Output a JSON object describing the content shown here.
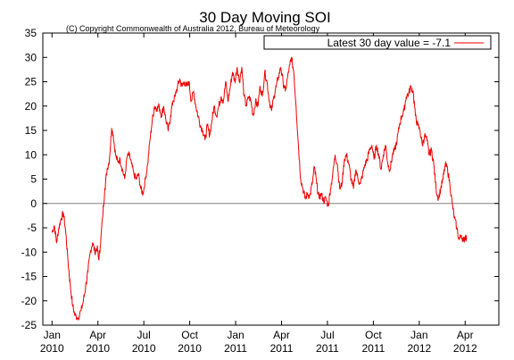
{
  "chart_data": {
    "type": "line",
    "title": "30 Day Moving SOI",
    "subtitle": "(C) Copyright Commonwealth of Australia 2012, Bureau of Meteorology",
    "xlabel": "",
    "ylabel": "",
    "ylim": [
      -25,
      35
    ],
    "yticks": [
      -25,
      -20,
      -15,
      -10,
      -5,
      0,
      5,
      10,
      15,
      20,
      25,
      30,
      35
    ],
    "grid": false,
    "zero_line": true,
    "legend": {
      "placement": "top-right",
      "text": "Latest 30 day value = -7.1"
    },
    "series_color": "#ee0000",
    "x_ticks": [
      {
        "month": "Jan",
        "year": "2010",
        "t": 0
      },
      {
        "month": "Apr",
        "year": "2010",
        "t": 3
      },
      {
        "month": "Jul",
        "year": "2010",
        "t": 6
      },
      {
        "month": "Oct",
        "year": "2010",
        "t": 9
      },
      {
        "month": "Jan",
        "year": "2011",
        "t": 12
      },
      {
        "month": "Apr",
        "year": "2011",
        "t": 15
      },
      {
        "month": "Jul",
        "year": "2011",
        "t": 18
      },
      {
        "month": "Oct",
        "year": "2011",
        "t": 21
      },
      {
        "month": "Jan",
        "year": "2012",
        "t": 24
      },
      {
        "month": "Apr",
        "year": "2012",
        "t": 27
      }
    ],
    "xlim": [
      -0.6,
      29.2
    ],
    "series": [
      {
        "points": [
          [
            0.0,
            -6.0
          ],
          [
            0.15,
            -4.5
          ],
          [
            0.3,
            -8.0
          ],
          [
            0.45,
            -5.0
          ],
          [
            0.6,
            -3.0
          ],
          [
            0.75,
            -2.0
          ],
          [
            0.9,
            -6.0
          ],
          [
            1.05,
            -12.0
          ],
          [
            1.2,
            -17.0
          ],
          [
            1.35,
            -21.0
          ],
          [
            1.5,
            -23.0
          ],
          [
            1.7,
            -23.5
          ],
          [
            1.9,
            -22.0
          ],
          [
            2.05,
            -20.0
          ],
          [
            2.2,
            -17.0
          ],
          [
            2.35,
            -14.0
          ],
          [
            2.5,
            -10.0
          ],
          [
            2.65,
            -8.0
          ],
          [
            2.8,
            -10.0
          ],
          [
            2.95,
            -9.0
          ],
          [
            3.05,
            -11.5
          ],
          [
            3.15,
            -9.0
          ],
          [
            3.3,
            -3.0
          ],
          [
            3.45,
            3.0
          ],
          [
            3.6,
            7.0
          ],
          [
            3.75,
            9.0
          ],
          [
            3.9,
            15.5
          ],
          [
            4.0,
            14.0
          ],
          [
            4.15,
            10.0
          ],
          [
            4.3,
            8.5
          ],
          [
            4.45,
            9.0
          ],
          [
            4.6,
            7.0
          ],
          [
            4.75,
            5.0
          ],
          [
            4.9,
            9.5
          ],
          [
            5.05,
            10.0
          ],
          [
            5.2,
            8.0
          ],
          [
            5.35,
            6.0
          ],
          [
            5.5,
            5.0
          ],
          [
            5.65,
            6.0
          ],
          [
            5.8,
            3.0
          ],
          [
            5.95,
            2.0
          ],
          [
            6.1,
            5.0
          ],
          [
            6.25,
            8.0
          ],
          [
            6.4,
            13.0
          ],
          [
            6.55,
            17.0
          ],
          [
            6.7,
            20.0
          ],
          [
            6.85,
            19.5
          ],
          [
            7.0,
            20.0
          ],
          [
            7.15,
            18.0
          ],
          [
            7.3,
            20.0
          ],
          [
            7.45,
            17.0
          ],
          [
            7.6,
            15.0
          ],
          [
            7.75,
            18.0
          ],
          [
            7.9,
            21.0
          ],
          [
            8.05,
            22.0
          ],
          [
            8.2,
            24.0
          ],
          [
            8.35,
            25.5
          ],
          [
            8.5,
            24.0
          ],
          [
            8.65,
            25.0
          ],
          [
            8.8,
            24.0
          ],
          [
            8.95,
            25.0
          ],
          [
            9.1,
            21.0
          ],
          [
            9.25,
            23.0
          ],
          [
            9.4,
            20.0
          ],
          [
            9.55,
            18.0
          ],
          [
            9.7,
            16.0
          ],
          [
            9.85,
            15.0
          ],
          [
            10.0,
            13.0
          ],
          [
            10.15,
            16.0
          ],
          [
            10.3,
            14.0
          ],
          [
            10.45,
            17.0
          ],
          [
            10.6,
            20.0
          ],
          [
            10.75,
            18.0
          ],
          [
            10.9,
            20.0
          ],
          [
            11.05,
            22.0
          ],
          [
            11.2,
            21.0
          ],
          [
            11.35,
            25.0
          ],
          [
            11.5,
            21.0
          ],
          [
            11.65,
            24.0
          ],
          [
            11.8,
            27.0
          ],
          [
            11.95,
            25.0
          ],
          [
            12.1,
            28.0
          ],
          [
            12.25,
            25.0
          ],
          [
            12.4,
            28.0
          ],
          [
            12.55,
            22.0
          ],
          [
            12.7,
            20.0
          ],
          [
            12.85,
            22.0
          ],
          [
            13.0,
            21.0
          ],
          [
            13.15,
            18.0
          ],
          [
            13.3,
            21.0
          ],
          [
            13.45,
            20.0
          ],
          [
            13.6,
            24.0
          ],
          [
            13.75,
            22.0
          ],
          [
            13.9,
            27.0
          ],
          [
            14.05,
            25.0
          ],
          [
            14.2,
            21.0
          ],
          [
            14.35,
            19.0
          ],
          [
            14.5,
            22.0
          ],
          [
            14.65,
            24.0
          ],
          [
            14.8,
            26.0
          ],
          [
            14.95,
            28.0
          ],
          [
            15.1,
            25.0
          ],
          [
            15.25,
            23.0
          ],
          [
            15.4,
            26.0
          ],
          [
            15.55,
            28.5
          ],
          [
            15.65,
            30.0
          ],
          [
            15.8,
            27.0
          ],
          [
            15.95,
            20.0
          ],
          [
            16.1,
            12.0
          ],
          [
            16.25,
            5.0
          ],
          [
            16.4,
            3.0
          ],
          [
            16.55,
            1.0
          ],
          [
            16.7,
            2.0
          ],
          [
            16.85,
            1.5
          ],
          [
            17.0,
            4.0
          ],
          [
            17.15,
            7.5
          ],
          [
            17.3,
            4.0
          ],
          [
            17.45,
            1.0
          ],
          [
            17.6,
            2.0
          ],
          [
            17.75,
            0.5
          ],
          [
            17.9,
            1.0
          ],
          [
            18.05,
            -0.5
          ],
          [
            18.2,
            3.0
          ],
          [
            18.35,
            6.0
          ],
          [
            18.5,
            10.0
          ],
          [
            18.65,
            8.0
          ],
          [
            18.8,
            3.0
          ],
          [
            18.95,
            4.0
          ],
          [
            19.1,
            9.0
          ],
          [
            19.25,
            10.0
          ],
          [
            19.4,
            8.0
          ],
          [
            19.55,
            5.0
          ],
          [
            19.7,
            3.0
          ],
          [
            19.85,
            7.0
          ],
          [
            20.0,
            5.0
          ],
          [
            20.15,
            4.0
          ],
          [
            20.3,
            6.0
          ],
          [
            20.45,
            8.0
          ],
          [
            20.6,
            9.0
          ],
          [
            20.75,
            11.0
          ],
          [
            20.9,
            12.0
          ],
          [
            21.05,
            9.0
          ],
          [
            21.2,
            12.0
          ],
          [
            21.35,
            10.0
          ],
          [
            21.5,
            7.0
          ],
          [
            21.65,
            10.0
          ],
          [
            21.8,
            12.0
          ],
          [
            21.95,
            8.0
          ],
          [
            22.1,
            7.0
          ],
          [
            22.25,
            10.0
          ],
          [
            22.4,
            11.0
          ],
          [
            22.55,
            13.0
          ],
          [
            22.7,
            16.0
          ],
          [
            22.85,
            18.0
          ],
          [
            23.0,
            19.0
          ],
          [
            23.15,
            22.0
          ],
          [
            23.3,
            22.5
          ],
          [
            23.45,
            24.0
          ],
          [
            23.6,
            23.0
          ],
          [
            23.75,
            18.0
          ],
          [
            23.9,
            16.0
          ],
          [
            24.05,
            15.0
          ],
          [
            24.2,
            12.0
          ],
          [
            24.35,
            14.0
          ],
          [
            24.5,
            13.0
          ],
          [
            24.65,
            10.0
          ],
          [
            24.8,
            11.0
          ],
          [
            24.95,
            8.0
          ],
          [
            25.1,
            3.0
          ],
          [
            25.25,
            1.0
          ],
          [
            25.4,
            3.0
          ],
          [
            25.55,
            5.0
          ],
          [
            25.7,
            8.0
          ],
          [
            25.85,
            7.0
          ],
          [
            26.0,
            4.0
          ],
          [
            26.15,
            0.0
          ],
          [
            26.3,
            -3.0
          ],
          [
            26.45,
            -5.0
          ],
          [
            26.6,
            -7.5
          ],
          [
            26.75,
            -6.5
          ],
          [
            26.9,
            -7.8
          ],
          [
            27.0,
            -6.8
          ],
          [
            27.1,
            -7.1
          ]
        ]
      }
    ]
  }
}
